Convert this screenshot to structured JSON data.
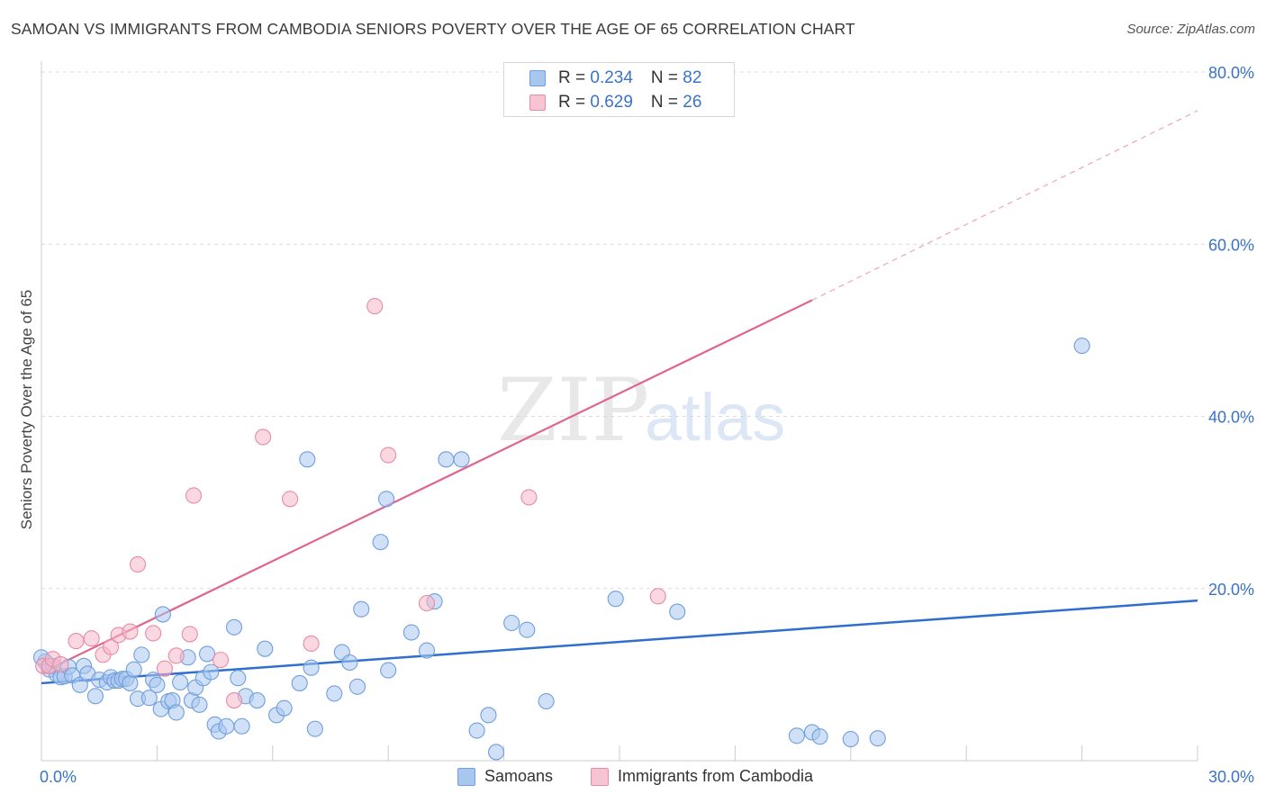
{
  "title": "SAMOAN VS IMMIGRANTS FROM CAMBODIA SENIORS POVERTY OVER THE AGE OF 65 CORRELATION CHART",
  "source": "Source: ZipAtlas.com",
  "watermark": {
    "zip": "ZIP",
    "atlas": "atlas"
  },
  "legend_top": [
    {
      "r_label": "R = ",
      "r_value": "0.234",
      "n_label": "N = ",
      "n_value": "82"
    },
    {
      "r_label": "R = ",
      "r_value": "0.629",
      "n_label": "N = ",
      "n_value": "26"
    }
  ],
  "colors": {
    "samoans_fill": "#a9c6ef",
    "samoans_stroke": "#6f9fdc",
    "samoans_line": "#2f6fcc",
    "cambodia_fill": "#f6b8c9",
    "cambodia_stroke": "#e88aa6",
    "cambodia_line": "#e06490",
    "axis_text": "#3a73c9"
  },
  "chart_data": {
    "type": "scatter",
    "title": "SAMOAN VS IMMIGRANTS FROM CAMBODIA SENIORS POVERTY OVER THE AGE OF 65 CORRELATION CHART",
    "xlabel": "",
    "ylabel": "Seniors Poverty Over the Age of 65",
    "xlim": [
      0,
      30
    ],
    "ylim": [
      0,
      80
    ],
    "x_tick_labels": [
      "0.0%",
      "30.0%"
    ],
    "y_ticks": [
      20,
      40,
      60,
      80
    ],
    "y_tick_labels": [
      "20.0%",
      "40.0%",
      "60.0%",
      "80.0%"
    ],
    "grid": true,
    "legend_position": "top-center",
    "series": [
      {
        "name": "Samoans",
        "R": 0.234,
        "N": 82,
        "trendline": {
          "x0": 0,
          "y0": 9.0,
          "x1": 30,
          "y1": 18.6,
          "dashed_extension": false
        },
        "points": [
          [
            0.1,
            11.5
          ],
          [
            0.2,
            10.6
          ],
          [
            0.3,
            11.0
          ],
          [
            0.4,
            10.0
          ],
          [
            0.5,
            9.7
          ],
          [
            0.6,
            9.8
          ],
          [
            0.7,
            10.9
          ],
          [
            0.8,
            9.9
          ],
          [
            1.0,
            8.8
          ],
          [
            1.1,
            11.0
          ],
          [
            1.2,
            10.1
          ],
          [
            1.4,
            7.5
          ],
          [
            1.5,
            9.4
          ],
          [
            1.7,
            9.1
          ],
          [
            1.8,
            9.7
          ],
          [
            1.9,
            9.3
          ],
          [
            2.0,
            9.3
          ],
          [
            2.1,
            9.5
          ],
          [
            2.2,
            9.5
          ],
          [
            2.3,
            9.0
          ],
          [
            2.4,
            10.6
          ],
          [
            2.5,
            7.2
          ],
          [
            2.6,
            12.3
          ],
          [
            2.8,
            7.3
          ],
          [
            2.9,
            9.4
          ],
          [
            3.0,
            8.8
          ],
          [
            3.1,
            6.0
          ],
          [
            3.15,
            17.0
          ],
          [
            3.3,
            6.9
          ],
          [
            3.4,
            7.0
          ],
          [
            3.5,
            5.6
          ],
          [
            3.6,
            9.1
          ],
          [
            3.8,
            12.0
          ],
          [
            3.9,
            7.0
          ],
          [
            4.0,
            8.5
          ],
          [
            4.1,
            6.5
          ],
          [
            4.2,
            9.6
          ],
          [
            4.3,
            12.4
          ],
          [
            4.4,
            10.3
          ],
          [
            4.5,
            4.2
          ],
          [
            4.6,
            3.4
          ],
          [
            4.8,
            4.0
          ],
          [
            5.0,
            15.5
          ],
          [
            5.1,
            9.6
          ],
          [
            5.2,
            4.0
          ],
          [
            5.3,
            7.5
          ],
          [
            5.6,
            7.0
          ],
          [
            5.8,
            13.0
          ],
          [
            6.1,
            5.3
          ],
          [
            6.3,
            6.1
          ],
          [
            6.7,
            9.0
          ],
          [
            6.9,
            35.0
          ],
          [
            7.0,
            10.8
          ],
          [
            7.1,
            3.7
          ],
          [
            7.6,
            7.8
          ],
          [
            7.8,
            12.6
          ],
          [
            8.0,
            11.4
          ],
          [
            8.2,
            8.6
          ],
          [
            8.3,
            17.6
          ],
          [
            9.0,
            10.5
          ],
          [
            8.8,
            25.4
          ],
          [
            8.95,
            30.4
          ],
          [
            9.6,
            14.9
          ],
          [
            10.0,
            12.8
          ],
          [
            10.2,
            18.5
          ],
          [
            10.5,
            35.0
          ],
          [
            10.9,
            35.0
          ],
          [
            11.3,
            3.5
          ],
          [
            11.6,
            5.3
          ],
          [
            11.8,
            1.0
          ],
          [
            12.2,
            16.0
          ],
          [
            12.6,
            15.2
          ],
          [
            13.1,
            6.9
          ],
          [
            14.9,
            18.8
          ],
          [
            16.5,
            17.3
          ],
          [
            19.6,
            2.9
          ],
          [
            20.0,
            3.3
          ],
          [
            20.2,
            2.8
          ],
          [
            21.0,
            2.5
          ],
          [
            21.7,
            2.6
          ],
          [
            27.0,
            48.2
          ],
          [
            0.0,
            12.0
          ]
        ]
      },
      {
        "name": "Immigrants from Cambodia",
        "R": 0.629,
        "N": 26,
        "trendline": {
          "x0": 0,
          "y0": 10.2,
          "x1": 20.0,
          "y1": 53.5,
          "dashed_extension": true,
          "dashed_to_x": 30,
          "dashed_to_y": 75.5
        },
        "points": [
          [
            0.05,
            11.0
          ],
          [
            0.2,
            11.0
          ],
          [
            0.3,
            11.8
          ],
          [
            0.5,
            11.2
          ],
          [
            0.9,
            13.9
          ],
          [
            1.3,
            14.2
          ],
          [
            1.6,
            12.3
          ],
          [
            1.8,
            13.2
          ],
          [
            2.0,
            14.6
          ],
          [
            2.3,
            15.0
          ],
          [
            2.5,
            22.8
          ],
          [
            2.9,
            14.8
          ],
          [
            3.2,
            10.7
          ],
          [
            3.5,
            12.2
          ],
          [
            3.85,
            14.7
          ],
          [
            3.95,
            30.8
          ],
          [
            4.65,
            11.7
          ],
          [
            5.0,
            7.0
          ],
          [
            5.75,
            37.6
          ],
          [
            6.45,
            30.4
          ],
          [
            7.0,
            13.6
          ],
          [
            8.65,
            52.8
          ],
          [
            9.0,
            35.5
          ],
          [
            10.0,
            18.3
          ],
          [
            12.65,
            30.6
          ],
          [
            16.0,
            19.1
          ]
        ]
      }
    ]
  },
  "bottom_legend": [
    {
      "label": "Samoans"
    },
    {
      "label": "Immigrants from Cambodia"
    }
  ]
}
